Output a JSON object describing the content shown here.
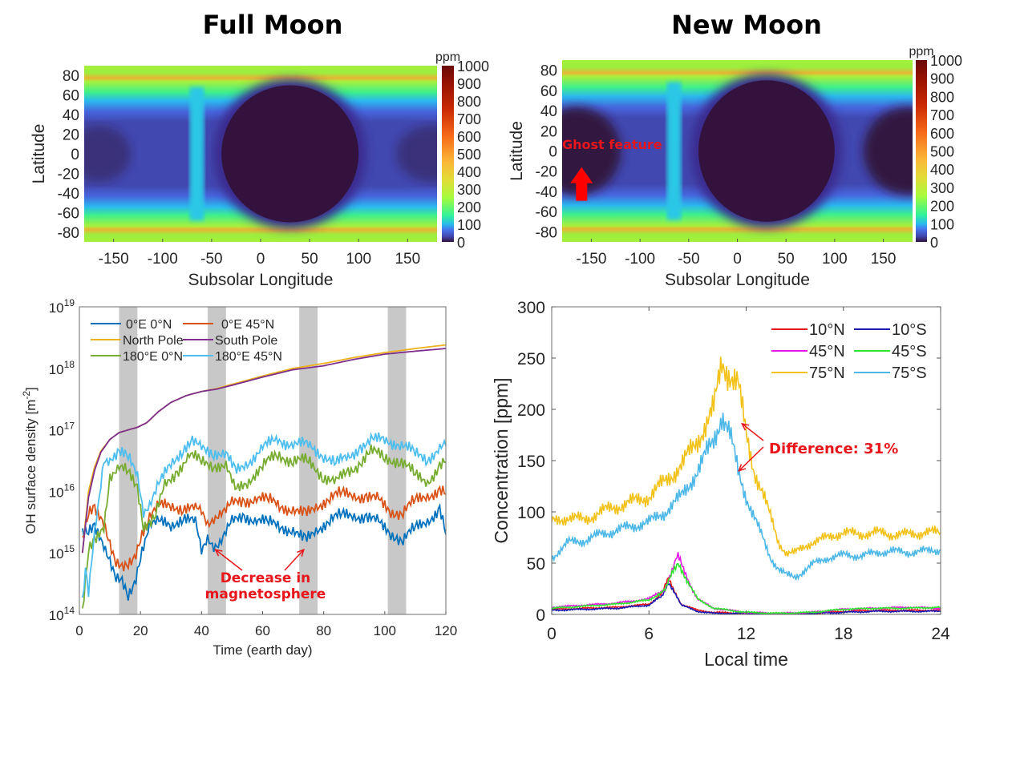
{
  "titles": {
    "full_moon": "Full Moon",
    "new_moon": "New Moon"
  },
  "chart_data": [
    {
      "id": "full-moon-map",
      "type": "heatmap",
      "title": "Full Moon",
      "xlabel": "Subsolar Longitude",
      "ylabel": "Latitude",
      "xlim": [
        -180,
        180
      ],
      "ylim": [
        -90,
        90
      ],
      "xticks": [
        -150,
        -100,
        -50,
        0,
        50,
        100,
        150
      ],
      "yticks": [
        80,
        60,
        40,
        20,
        0,
        -20,
        -40,
        -60,
        -80
      ],
      "colorbar": {
        "label": "ppm",
        "range": [
          0,
          1000
        ],
        "ticks": [
          1000,
          900,
          800,
          700,
          600,
          500,
          400,
          300,
          200,
          100,
          0
        ]
      },
      "features": {
        "dayside_center_lon": 30,
        "dayside_radius_deg": 70,
        "terminator_lon": -65,
        "polar_band_lat": 80
      },
      "annotations": []
    },
    {
      "id": "new-moon-map",
      "type": "heatmap",
      "title": "New Moon",
      "xlabel": "Subsolar Longitude",
      "ylabel": "Latitude",
      "xlim": [
        -180,
        180
      ],
      "ylim": [
        -90,
        90
      ],
      "xticks": [
        -150,
        -100,
        -50,
        0,
        50,
        100,
        150
      ],
      "yticks": [
        80,
        60,
        40,
        20,
        0,
        -20,
        -40,
        -60,
        -80
      ],
      "colorbar": {
        "label": "ppm",
        "range": [
          0,
          1000
        ],
        "ticks": [
          1000,
          900,
          800,
          700,
          600,
          500,
          400,
          300,
          200,
          100,
          0
        ]
      },
      "features": {
        "dayside_center_lon": 30,
        "dayside_radius_deg": 70,
        "terminator_lon": -65,
        "polar_band_lat": 80
      },
      "annotations": [
        {
          "text": "Ghost feature",
          "arrow": "up",
          "x": -160,
          "y": -35
        }
      ]
    },
    {
      "id": "oh-density-time",
      "type": "line",
      "xlabel": "Time (earth day)",
      "ylabel": "OH surface density [m^-2]",
      "ylabel_main": "OH surface density [m",
      "ylabel_sup": "-2",
      "ylabel_tail": "]",
      "xlim": [
        0,
        120
      ],
      "ylim": [
        100000000000000.0,
        1e+19
      ],
      "yscale": "log",
      "xticks": [
        0,
        20,
        40,
        60,
        80,
        100,
        120
      ],
      "yticks": [
        {
          "base": "10",
          "exp": "19"
        },
        {
          "base": "10",
          "exp": "18"
        },
        {
          "base": "10",
          "exp": "17"
        },
        {
          "base": "10",
          "exp": "16"
        },
        {
          "base": "10",
          "exp": "15"
        },
        {
          "base": "10",
          "exp": "14"
        }
      ],
      "shaded_intervals": [
        [
          13,
          19
        ],
        [
          42,
          48
        ],
        [
          72,
          78
        ],
        [
          101,
          107
        ]
      ],
      "series": [
        {
          "name": "0°E  0°N",
          "color": "#0072bd",
          "x": [
            1,
            3,
            5,
            8,
            10,
            12,
            14,
            16,
            18,
            20,
            23,
            26,
            30,
            34,
            38,
            40,
            42,
            44,
            46,
            48,
            50,
            54,
            58,
            62,
            66,
            70,
            74,
            78,
            82,
            86,
            90,
            94,
            98,
            102,
            104,
            106,
            110,
            114,
            118,
            120
          ],
          "y": [
            2000000000000000.0,
            2000000000000000.0,
            2500000000000000.0,
            1500000000000000.0,
            800000000000000.0,
            400000000000000.0,
            300000000000000.0,
            180000000000000.0,
            300000000000000.0,
            1000000000000000.0,
            3000000000000000.0,
            3000000000000000.0,
            2800000000000000.0,
            4000000000000000.0,
            3000000000000000.0,
            1000000000000000.0,
            1800000000000000.0,
            1400000000000000.0,
            1500000000000000.0,
            2200000000000000.0,
            3000000000000000.0,
            4000000000000000.0,
            3500000000000000.0,
            3000000000000000.0,
            2800000000000000.0,
            2300000000000000.0,
            1500000000000000.0,
            2500000000000000.0,
            3500000000000000.0,
            4000000000000000.0,
            4200000000000000.0,
            3800000000000000.0,
            3000000000000000.0,
            2200000000000000.0,
            1800000000000000.0,
            1600000000000000.0,
            2500000000000000.0,
            3500000000000000.0,
            5000000000000000.0,
            2000000000000000.0
          ]
        },
        {
          "name": "0°E  45°N",
          "color": "#d95319",
          "x": [
            1,
            3,
            5,
            8,
            10,
            12,
            14,
            16,
            18,
            20,
            23,
            26,
            30,
            34,
            38,
            40,
            42,
            44,
            46,
            48,
            50,
            54,
            58,
            62,
            66,
            70,
            74,
            78,
            82,
            86,
            90,
            94,
            98,
            102,
            104,
            106,
            110,
            114,
            118,
            120
          ],
          "y": [
            1500000000000000.0,
            4000000000000000.0,
            5000000000000000.0,
            3500000000000000.0,
            1500000000000000.0,
            700000000000000.0,
            500000000000000.0,
            600000000000000.0,
            800000000000000.0,
            2000000000000000.0,
            4000000000000000.0,
            5500000000000000.0,
            6000000000000000.0,
            5500000000000000.0,
            5000000000000000.0,
            4500000000000000.0,
            3000000000000000.0,
            4000000000000000.0,
            4500000000000000.0,
            5000000000000000.0,
            6000000000000000.0,
            7000000000000000.0,
            8000000000000000.0,
            7000000000000000.0,
            6000000000000000.0,
            5000000000000000.0,
            4000000000000000.0,
            6000000000000000.0,
            8000000000000000.0,
            9000000000000000.0,
            9000000000000000.0,
            8000000000000000.0,
            7000000000000000.0,
            5000000000000000.0,
            4500000000000000.0,
            4500000000000000.0,
            7000000000000000.0,
            9000000000000000.0,
            1e+16,
            9000000000000000.0
          ]
        },
        {
          "name": "North Pole",
          "color": "#edb120",
          "x": [
            1,
            3,
            5,
            7,
            10,
            13,
            16,
            19,
            22,
            26,
            30,
            35,
            40,
            45,
            50,
            60,
            70,
            80,
            90,
            100,
            110,
            120
          ],
          "y": [
            1000000000000000.0,
            1e+16,
            2.5e+16,
            4.5e+16,
            7e+16,
            9e+16,
            1e+17,
            1.1e+17,
            1.3e+17,
            2e+17,
            2.8e+17,
            3.6e+17,
            4.2e+17,
            4.7e+17,
            5.5e+17,
            7.5e+17,
            1e+18,
            1.2e+18,
            1.5e+18,
            1.8e+18,
            2.1e+18,
            2.4e+18
          ]
        },
        {
          "name": "South Pole",
          "color": "#7e2f8e",
          "x": [
            1,
            3,
            5,
            7,
            10,
            13,
            16,
            19,
            22,
            26,
            30,
            35,
            40,
            45,
            50,
            60,
            70,
            80,
            90,
            100,
            110,
            120
          ],
          "y": [
            1000000000000000.0,
            8000000000000000.0,
            2.2e+16,
            4.3e+16,
            7e+16,
            9e+16,
            1e+17,
            1.1e+17,
            1.3e+17,
            2e+17,
            2.8e+17,
            3.6e+17,
            4.2e+17,
            4.6e+17,
            5.3e+17,
            7.2e+17,
            9.5e+17,
            1.1e+18,
            1.4e+18,
            1.7e+18,
            1.9e+18,
            2.1e+18
          ]
        },
        {
          "name": "180°E 0°N",
          "color": "#77ac30",
          "x": [
            1,
            3,
            5,
            8,
            10,
            13,
            16,
            19,
            21,
            23,
            25,
            28,
            32,
            36,
            40,
            44,
            48,
            51,
            55,
            60,
            65,
            70,
            75,
            80,
            84,
            88,
            92,
            95,
            100,
            105,
            110,
            114,
            118,
            120
          ],
          "y": [
            100000000000000.0,
            1000000000000000.0,
            1500000000000000.0,
            3000000000000000.0,
            1.8e+16,
            2.3e+16,
            2e+16,
            1.2e+16,
            3000000000000000.0,
            3000000000000000.0,
            4000000000000000.0,
            1.2e+16,
            2.2e+16,
            3.8e+16,
            3e+16,
            2.8e+16,
            2.5e+16,
            1e+16,
            1.5e+16,
            2.5e+16,
            4e+16,
            3.2e+16,
            3e+16,
            1.8e+16,
            1.4e+16,
            2e+16,
            3e+16,
            4.5e+16,
            3.5e+16,
            3.2e+16,
            1.8e+16,
            1.5e+16,
            2.5e+16,
            3e+16
          ]
        },
        {
          "name": "180°E 45°N",
          "color": "#4dbeee",
          "x": [
            1,
            2,
            3,
            5,
            8,
            10,
            13,
            16,
            19,
            21,
            23,
            26,
            30,
            34,
            37,
            40,
            44,
            48,
            51,
            55,
            60,
            65,
            70,
            75,
            80,
            84,
            88,
            92,
            96,
            100,
            105,
            110,
            114,
            118,
            120
          ],
          "y": [
            150000000000000.0,
            500000000000000.0,
            200000000000000.0,
            2000000000000000.0,
            3.5e+16,
            3.5e+16,
            4e+16,
            3.5e+16,
            2e+16,
            5000000000000000.0,
            6000000000000000.0,
            1.2e+16,
            3e+16,
            5e+16,
            6e+16,
            5e+16,
            4.5e+16,
            4e+16,
            2e+16,
            3e+16,
            5e+16,
            7e+16,
            6e+16,
            5.5e+16,
            4e+16,
            2.8e+16,
            3.5e+16,
            5.5e+16,
            6.5e+16,
            7e+16,
            6e+16,
            4e+16,
            3.5e+16,
            5e+16,
            5.5e+16
          ]
        }
      ],
      "annotations": [
        {
          "text_line1": "Decrease in",
          "text_line2": "magnetosphere",
          "arrows_to": [
            [
              44,
              1200000000000000.0
            ],
            [
              74,
              1200000000000000.0
            ]
          ]
        }
      ],
      "legend": "top-left"
    },
    {
      "id": "concentration-local-time",
      "type": "line",
      "xlabel": "Local time",
      "ylabel": "Concentration [ppm]",
      "xlim": [
        0,
        24
      ],
      "ylim": [
        0,
        300
      ],
      "xticks": [
        0,
        6,
        12,
        18,
        24
      ],
      "yticks": [
        300,
        250,
        200,
        150,
        100,
        50,
        0
      ],
      "series": [
        {
          "name": "10°N",
          "color": "#e8161b",
          "x": [
            0,
            2,
            4,
            6,
            6.8,
            7.2,
            7.6,
            8,
            9,
            10,
            12,
            14,
            16,
            18,
            20,
            22,
            24
          ],
          "y": [
            5,
            6,
            7,
            10,
            20,
            35,
            22,
            10,
            4,
            2,
            1,
            0,
            1,
            3,
            4,
            4,
            4
          ]
        },
        {
          "name": "10°S",
          "color": "#1a1ab3",
          "x": [
            0,
            2,
            4,
            6,
            6.8,
            7.2,
            7.6,
            8,
            9,
            10,
            12,
            14,
            16,
            18,
            20,
            22,
            24
          ],
          "y": [
            4,
            5,
            6,
            9,
            18,
            30,
            20,
            9,
            3,
            1,
            1,
            0,
            1,
            2,
            3,
            3,
            3
          ]
        },
        {
          "name": "45°N",
          "color": "#e617e6",
          "x": [
            0,
            2,
            4,
            6,
            7,
            7.5,
            7.8,
            8.2,
            9,
            10,
            12,
            14,
            16,
            18,
            20,
            22,
            24
          ],
          "y": [
            7,
            9,
            11,
            15,
            25,
            45,
            58,
            40,
            15,
            6,
            2,
            1,
            2,
            5,
            6,
            7,
            6
          ]
        },
        {
          "name": "45°S",
          "color": "#2ee62e",
          "x": [
            0,
            2,
            4,
            6,
            7,
            7.5,
            7.8,
            8.2,
            9,
            10,
            12,
            14,
            16,
            18,
            20,
            22,
            24
          ],
          "y": [
            6,
            8,
            10,
            14,
            24,
            42,
            52,
            38,
            15,
            6,
            2,
            1,
            2,
            5,
            6,
            6,
            7
          ]
        },
        {
          "name": "75°N",
          "color": "#f2c21b",
          "x": [
            0,
            1,
            2,
            3,
            4,
            5,
            6,
            7,
            8,
            9,
            10,
            10.5,
            11,
            11.5,
            12,
            12.5,
            13,
            13.5,
            14,
            14.5,
            15,
            16,
            17,
            18,
            19,
            20,
            21,
            22,
            23,
            24
          ],
          "y": [
            90,
            95,
            92,
            100,
            105,
            110,
            115,
            130,
            145,
            170,
            200,
            245,
            235,
            225,
            175,
            140,
            120,
            95,
            70,
            60,
            60,
            70,
            75,
            80,
            78,
            80,
            78,
            78,
            80,
            80
          ]
        },
        {
          "name": "75°S",
          "color": "#4db8e8",
          "x": [
            0,
            1,
            2,
            3,
            4,
            5,
            6,
            7,
            8,
            9,
            10,
            10.5,
            11,
            11.5,
            12,
            12.5,
            13,
            13.5,
            14,
            14.5,
            15,
            16,
            17,
            18,
            19,
            20,
            21,
            22,
            23,
            24
          ],
          "y": [
            55,
            70,
            72,
            78,
            82,
            86,
            90,
            100,
            115,
            140,
            170,
            195,
            175,
            140,
            115,
            95,
            75,
            55,
            45,
            38,
            36,
            48,
            55,
            58,
            57,
            60,
            62,
            60,
            62,
            63
          ]
        }
      ],
      "annotations": [
        {
          "text": "Difference: 31%",
          "arrows_to": [
            [
              11.6,
              186
            ],
            [
              11.4,
              140
            ]
          ]
        }
      ],
      "legend": "top-right"
    }
  ]
}
